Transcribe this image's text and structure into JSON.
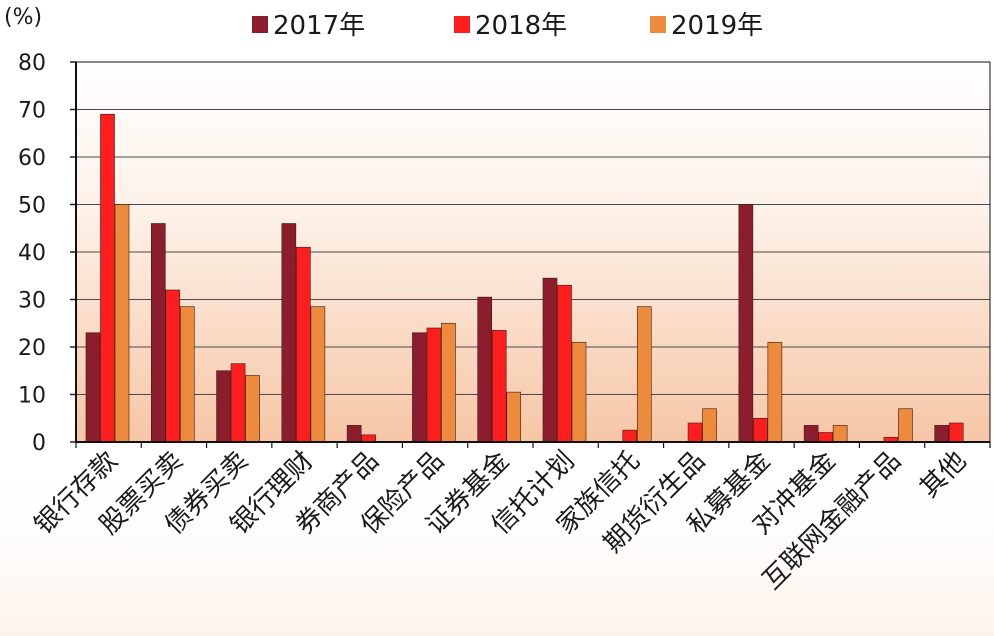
{
  "chart_data": {
    "type": "bar",
    "ylabel": "(%)",
    "ylim": [
      0,
      80
    ],
    "yticks": [
      0,
      10,
      20,
      30,
      40,
      50,
      60,
      70,
      80
    ],
    "grid": true,
    "legend": "top",
    "categories": [
      "银行存款",
      "股票买卖",
      "债券买卖",
      "银行理财",
      "券商产品",
      "保险产品",
      "证券基金",
      "信托计划",
      "家族信托",
      "期货衍生品",
      "私募基金",
      "对冲基金",
      "互联网金融产品",
      "其他"
    ],
    "series": [
      {
        "name": "2017年",
        "color": "#8b1d2c",
        "values": [
          23,
          46,
          15,
          46,
          3.5,
          23,
          30.5,
          34.5,
          0,
          0,
          50,
          3.5,
          0,
          3.5
        ]
      },
      {
        "name": "2018年",
        "color": "#ff1e1e",
        "values": [
          69,
          32,
          16.5,
          41,
          1.5,
          24,
          23.5,
          33,
          2.5,
          4,
          5,
          2,
          1,
          4
        ]
      },
      {
        "name": "2019年",
        "color": "#ee8a3c",
        "values": [
          50,
          28.5,
          14,
          28.5,
          0,
          25,
          10.5,
          21,
          28.5,
          7,
          21,
          3.5,
          7,
          0
        ]
      }
    ]
  }
}
